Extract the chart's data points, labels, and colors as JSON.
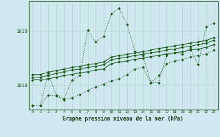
{
  "background_color": "#cfe8f0",
  "grid_color": "#b0d8d0",
  "line_color": "#1a5c1a",
  "xlim": [
    -0.5,
    23.5
  ],
  "ylim": [
    1017.55,
    1019.55
  ],
  "yticks": [
    1018,
    1019
  ],
  "xlabel": "Graphe pression niveau de la mer (hPa)",
  "series": [
    [
      1017.63,
      1017.63,
      1018.22,
      1017.82,
      1017.75,
      1018.1,
      1018.18,
      1019.02,
      1018.8,
      1018.9,
      1019.32,
      1019.42,
      1019.12,
      1018.62,
      1018.55,
      1018.05,
      1018.05,
      1018.55,
      1018.6,
      1018.58,
      1018.68,
      1018.38,
      1019.08,
      1019.15
    ],
    [
      1018.2,
      1018.2,
      1018.24,
      1018.27,
      1018.3,
      1018.33,
      1018.35,
      1018.38,
      1018.4,
      1018.43,
      1018.52,
      1018.55,
      1018.57,
      1018.6,
      1018.62,
      1018.65,
      1018.68,
      1018.7,
      1018.73,
      1018.75,
      1018.78,
      1018.8,
      1018.83,
      1018.88
    ],
    [
      1018.15,
      1018.15,
      1018.18,
      1018.22,
      1018.25,
      1018.28,
      1018.3,
      1018.33,
      1018.35,
      1018.38,
      1018.47,
      1018.5,
      1018.52,
      1018.55,
      1018.57,
      1018.6,
      1018.62,
      1018.65,
      1018.67,
      1018.7,
      1018.72,
      1018.75,
      1018.78,
      1018.83
    ],
    [
      1018.1,
      1018.1,
      1018.12,
      1018.15,
      1018.18,
      1018.2,
      1018.23,
      1018.25,
      1018.28,
      1018.3,
      1018.4,
      1018.43,
      1018.45,
      1018.48,
      1018.5,
      1018.53,
      1018.55,
      1018.58,
      1018.6,
      1018.62,
      1018.65,
      1018.67,
      1018.7,
      1018.75
    ],
    [
      1017.63,
      1017.63,
      1017.82,
      1017.8,
      1017.73,
      1017.77,
      1017.83,
      1017.9,
      1017.97,
      1018.02,
      1018.08,
      1018.12,
      1018.2,
      1018.3,
      1018.33,
      1018.05,
      1018.18,
      1018.4,
      1018.45,
      1018.47,
      1018.52,
      1018.55,
      1018.58,
      1018.65
    ]
  ]
}
